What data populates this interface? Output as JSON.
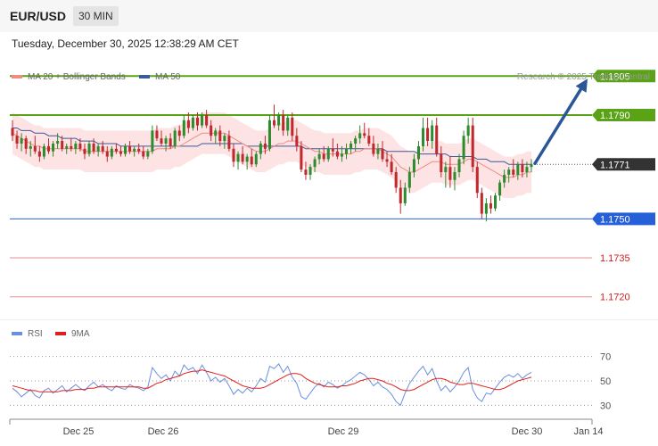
{
  "header": {
    "pair": "EUR/USD",
    "timeframe": "30 MIN"
  },
  "datetime": "Tuesday, December 30, 2025 12:38:29 AM CET",
  "legend": {
    "ma20": "MA 20 + Bollinger Bands",
    "ma50": "MA 50",
    "rsi": "RSI",
    "rsi_ma": "9MA",
    "credit": "Research © 2025 Trading Central"
  },
  "colors": {
    "up": "#2e8b2e",
    "down": "#c0282d",
    "band_fill": "#fde3e3",
    "ma20": "#f28b82",
    "ma50": "#3a5a9c",
    "resistance": "#5aa317",
    "current": "#333333",
    "support_blue": "#2660d8",
    "support_red": "#e06060",
    "arrow": "#2b5797",
    "rsi": "#6a8fe0",
    "rsi_ma": "#e0201a"
  },
  "chart_data": {
    "type": "candlestick",
    "ylim": [
      1.1712,
      1.1813
    ],
    "levels": [
      {
        "value": 1.1805,
        "label": "1.1805",
        "kind": "resistance"
      },
      {
        "value": 1.179,
        "label": "1.1790",
        "kind": "resistance"
      },
      {
        "value": 1.1771,
        "label": "1.1771",
        "kind": "current"
      },
      {
        "value": 1.175,
        "label": "1.1750",
        "kind": "support_blue"
      },
      {
        "value": 1.1735,
        "label": "1.1735",
        "kind": "support_red"
      },
      {
        "value": 1.172,
        "label": "1.1720",
        "kind": "support_red"
      }
    ],
    "arrow": {
      "from": 1.1771,
      "to": 1.1805
    },
    "x_ticks": [
      "Dec 25",
      "Dec 26",
      "Dec 29",
      "Dec 30",
      "Jan 14"
    ],
    "candles": [
      [
        1.1785,
        1.1788,
        1.178,
        1.1782
      ],
      [
        1.1782,
        1.1784,
        1.1777,
        1.1779
      ],
      [
        1.1779,
        1.1783,
        1.1776,
        1.1781
      ],
      [
        1.1781,
        1.1782,
        1.1775,
        1.1777
      ],
      [
        1.1777,
        1.178,
        1.1774,
        1.1778
      ],
      [
        1.1778,
        1.1782,
        1.1775,
        1.1776
      ],
      [
        1.1776,
        1.1778,
        1.1772,
        1.1774
      ],
      [
        1.1774,
        1.1779,
        1.1773,
        1.1778
      ],
      [
        1.1778,
        1.1781,
        1.1775,
        1.1776
      ],
      [
        1.1776,
        1.178,
        1.1774,
        1.1779
      ],
      [
        1.1779,
        1.1783,
        1.1777,
        1.178
      ],
      [
        1.178,
        1.1782,
        1.1776,
        1.1777
      ],
      [
        1.1777,
        1.1779,
        1.1775,
        1.1778
      ],
      [
        1.1778,
        1.1781,
        1.1776,
        1.1777
      ],
      [
        1.1777,
        1.178,
        1.1775,
        1.1779
      ],
      [
        1.1779,
        1.1781,
        1.1776,
        1.1777
      ],
      [
        1.1777,
        1.1779,
        1.1773,
        1.1775
      ],
      [
        1.1775,
        1.178,
        1.1774,
        1.1779
      ],
      [
        1.1779,
        1.1781,
        1.1775,
        1.1776
      ],
      [
        1.1776,
        1.1779,
        1.1774,
        1.1778
      ],
      [
        1.1778,
        1.178,
        1.1775,
        1.1776
      ],
      [
        1.1776,
        1.1778,
        1.1772,
        1.1774
      ],
      [
        1.1774,
        1.1778,
        1.1773,
        1.1777
      ],
      [
        1.1777,
        1.1779,
        1.1775,
        1.1776
      ],
      [
        1.1776,
        1.1778,
        1.1774,
        1.1775
      ],
      [
        1.1775,
        1.1779,
        1.1774,
        1.1778
      ],
      [
        1.1778,
        1.178,
        1.1775,
        1.1776
      ],
      [
        1.1776,
        1.1778,
        1.1774,
        1.1777
      ],
      [
        1.1777,
        1.1779,
        1.1775,
        1.1776
      ],
      [
        1.1776,
        1.1778,
        1.1773,
        1.1774
      ],
      [
        1.1774,
        1.1777,
        1.1773,
        1.1776
      ],
      [
        1.1776,
        1.1786,
        1.1775,
        1.1784
      ],
      [
        1.1784,
        1.1786,
        1.178,
        1.1781
      ],
      [
        1.1781,
        1.1784,
        1.1778,
        1.1779
      ],
      [
        1.1779,
        1.1782,
        1.1776,
        1.1781
      ],
      [
        1.1781,
        1.1783,
        1.1777,
        1.1778
      ],
      [
        1.1778,
        1.1785,
        1.1777,
        1.1784
      ],
      [
        1.1784,
        1.1786,
        1.178,
        1.1782
      ],
      [
        1.1782,
        1.179,
        1.1781,
        1.1788
      ],
      [
        1.1788,
        1.1791,
        1.1783,
        1.1785
      ],
      [
        1.1785,
        1.179,
        1.1784,
        1.1789
      ],
      [
        1.1789,
        1.1791,
        1.1784,
        1.1786
      ],
      [
        1.1786,
        1.1791,
        1.1785,
        1.179
      ],
      [
        1.179,
        1.1792,
        1.1785,
        1.1786
      ],
      [
        1.1786,
        1.1788,
        1.178,
        1.1782
      ],
      [
        1.1782,
        1.1785,
        1.1779,
        1.1784
      ],
      [
        1.1784,
        1.1786,
        1.1778,
        1.178
      ],
      [
        1.178,
        1.1783,
        1.1777,
        1.1782
      ],
      [
        1.1782,
        1.1784,
        1.1776,
        1.1777
      ],
      [
        1.1777,
        1.1779,
        1.177,
        1.1772
      ],
      [
        1.1772,
        1.1776,
        1.1769,
        1.1775
      ],
      [
        1.1775,
        1.1778,
        1.1771,
        1.1772
      ],
      [
        1.1772,
        1.1775,
        1.1769,
        1.1774
      ],
      [
        1.1774,
        1.1777,
        1.177,
        1.1771
      ],
      [
        1.1771,
        1.1776,
        1.177,
        1.1775
      ],
      [
        1.1775,
        1.178,
        1.1773,
        1.1779
      ],
      [
        1.1779,
        1.1782,
        1.1775,
        1.1777
      ],
      [
        1.1777,
        1.179,
        1.1776,
        1.1788
      ],
      [
        1.1788,
        1.1794,
        1.1785,
        1.1786
      ],
      [
        1.1786,
        1.1791,
        1.1784,
        1.179
      ],
      [
        1.179,
        1.1792,
        1.1782,
        1.1784
      ],
      [
        1.1784,
        1.179,
        1.1782,
        1.1789
      ],
      [
        1.1789,
        1.1791,
        1.178,
        1.1782
      ],
      [
        1.1782,
        1.1785,
        1.1776,
        1.1778
      ],
      [
        1.1778,
        1.178,
        1.1768,
        1.1769
      ],
      [
        1.1769,
        1.1772,
        1.1765,
        1.1767
      ],
      [
        1.1767,
        1.1771,
        1.1765,
        1.177
      ],
      [
        1.177,
        1.1774,
        1.1768,
        1.1773
      ],
      [
        1.1773,
        1.1777,
        1.1771,
        1.1775
      ],
      [
        1.1775,
        1.1778,
        1.1772,
        1.1773
      ],
      [
        1.1773,
        1.1778,
        1.1772,
        1.1777
      ],
      [
        1.1777,
        1.1781,
        1.1774,
        1.1776
      ],
      [
        1.1776,
        1.1779,
        1.1773,
        1.1774
      ],
      [
        1.1774,
        1.1778,
        1.1772,
        1.1775
      ],
      [
        1.1775,
        1.1779,
        1.1773,
        1.1777
      ],
      [
        1.1777,
        1.178,
        1.1775,
        1.1779
      ],
      [
        1.1779,
        1.1782,
        1.1776,
        1.1781
      ],
      [
        1.1781,
        1.1786,
        1.1779,
        1.1783
      ],
      [
        1.1783,
        1.1787,
        1.1781,
        1.1782
      ],
      [
        1.1782,
        1.1785,
        1.1778,
        1.1779
      ],
      [
        1.1779,
        1.1782,
        1.1774,
        1.1775
      ],
      [
        1.1775,
        1.1779,
        1.1773,
        1.1777
      ],
      [
        1.1777,
        1.178,
        1.1772,
        1.1773
      ],
      [
        1.1773,
        1.1776,
        1.177,
        1.1772
      ],
      [
        1.1772,
        1.1775,
        1.1767,
        1.1768
      ],
      [
        1.1768,
        1.177,
        1.176,
        1.1762
      ],
      [
        1.1762,
        1.1765,
        1.1752,
        1.1756
      ],
      [
        1.1756,
        1.1764,
        1.1755,
        1.1762
      ],
      [
        1.1762,
        1.177,
        1.176,
        1.1768
      ],
      [
        1.1768,
        1.1775,
        1.1766,
        1.1773
      ],
      [
        1.1773,
        1.178,
        1.1771,
        1.1778
      ],
      [
        1.1778,
        1.1789,
        1.1776,
        1.1785
      ],
      [
        1.1785,
        1.1789,
        1.1778,
        1.178
      ],
      [
        1.178,
        1.1788,
        1.1777,
        1.1786
      ],
      [
        1.1786,
        1.1789,
        1.1774,
        1.1775
      ],
      [
        1.1775,
        1.1778,
        1.1766,
        1.1768
      ],
      [
        1.1768,
        1.1772,
        1.1762,
        1.177
      ],
      [
        1.177,
        1.1774,
        1.1762,
        1.1765
      ],
      [
        1.1765,
        1.177,
        1.1761,
        1.1768
      ],
      [
        1.1768,
        1.1775,
        1.1766,
        1.1773
      ],
      [
        1.1773,
        1.1784,
        1.1771,
        1.1782
      ],
      [
        1.1782,
        1.1789,
        1.1779,
        1.1786
      ],
      [
        1.1786,
        1.1789,
        1.1768,
        1.177
      ],
      [
        1.177,
        1.1772,
        1.1758,
        1.176
      ],
      [
        1.176,
        1.1762,
        1.175,
        1.1752
      ],
      [
        1.1752,
        1.1758,
        1.1749,
        1.1756
      ],
      [
        1.1756,
        1.1759,
        1.1752,
        1.1754
      ],
      [
        1.1754,
        1.176,
        1.1753,
        1.1759
      ],
      [
        1.1759,
        1.1765,
        1.1757,
        1.1764
      ],
      [
        1.1764,
        1.1769,
        1.1762,
        1.1767
      ],
      [
        1.1767,
        1.177,
        1.1764,
        1.1769
      ],
      [
        1.1769,
        1.1773,
        1.1766,
        1.1767
      ],
      [
        1.1767,
        1.1772,
        1.1765,
        1.1771
      ],
      [
        1.1771,
        1.1773,
        1.1766,
        1.1768
      ],
      [
        1.1768,
        1.1772,
        1.1766,
        1.177
      ],
      [
        1.177,
        1.1773,
        1.1768,
        1.1771
      ]
    ],
    "ma20": [
      1.1783,
      1.1782,
      1.1781,
      1.178,
      1.1779,
      1.1778,
      1.1778,
      1.1777,
      1.1777,
      1.1777,
      1.1777,
      1.1777,
      1.1777,
      1.1777,
      1.1777,
      1.1777,
      1.1776,
      1.1776,
      1.1776,
      1.1776,
      1.1776,
      1.1776,
      1.1776,
      1.1776,
      1.1776,
      1.1776,
      1.1776,
      1.1776,
      1.1776,
      1.1776,
      1.1776,
      1.1776,
      1.1777,
      1.1777,
      1.1777,
      1.1777,
      1.1778,
      1.1778,
      1.1779,
      1.178,
      1.1781,
      1.1782,
      1.1783,
      1.1783,
      1.1783,
      1.1783,
      1.1783,
      1.1783,
      1.1782,
      1.1781,
      1.178,
      1.1779,
      1.1778,
      1.1777,
      1.1776,
      1.1776,
      1.1776,
      1.1777,
      1.1778,
      1.1779,
      1.1779,
      1.178,
      1.178,
      1.178,
      1.1779,
      1.1778,
      1.1777,
      1.1776,
      1.1776,
      1.1775,
      1.1775,
      1.1775,
      1.1775,
      1.1775,
      1.1775,
      1.1775,
      1.1776,
      1.1776,
      1.1777,
      1.1777,
      1.1777,
      1.1777,
      1.1776,
      1.1775,
      1.1774,
      1.1772,
      1.177,
      1.1769,
      1.1768,
      1.1768,
      1.1769,
      1.177,
      1.1771,
      1.1772,
      1.1772,
      1.1772,
      1.1771,
      1.1771,
      1.1771,
      1.1771,
      1.1772,
      1.1773,
      1.1773,
      1.1772,
      1.1771,
      1.177,
      1.1769,
      1.1768,
      1.1767,
      1.1766,
      1.1766,
      1.1766,
      1.1767,
      1.1767,
      1.1768,
      1.1768
    ],
    "ma50": [
      1.1785,
      1.1785,
      1.1784,
      1.1784,
      1.1784,
      1.1783,
      1.1783,
      1.1783,
      1.1782,
      1.1782,
      1.1782,
      1.1781,
      1.1781,
      1.1781,
      1.1781,
      1.178,
      1.178,
      1.178,
      1.178,
      1.1779,
      1.1779,
      1.1779,
      1.1779,
      1.1779,
      1.1778,
      1.1778,
      1.1778,
      1.1778,
      1.1778,
      1.1778,
      1.1778,
      1.1778,
      1.1778,
      1.1778,
      1.1778,
      1.1778,
      1.1778,
      1.1778,
      1.1778,
      1.1778,
      1.1778,
      1.1778,
      1.1779,
      1.1779,
      1.1779,
      1.1779,
      1.1779,
      1.1779,
      1.1779,
      1.1779,
      1.1779,
      1.1779,
      1.1778,
      1.1778,
      1.1778,
      1.1778,
      1.1778,
      1.1778,
      1.1778,
      1.1778,
      1.1778,
      1.1778,
      1.1778,
      1.1778,
      1.1778,
      1.1777,
      1.1777,
      1.1777,
      1.1777,
      1.1777,
      1.1777,
      1.1777,
      1.1777,
      1.1777,
      1.1777,
      1.1777,
      1.1777,
      1.1777,
      1.1777,
      1.1777,
      1.1777,
      1.1777,
      1.1777,
      1.1776,
      1.1776,
      1.1776,
      1.1776,
      1.1776,
      1.1776,
      1.1776,
      1.1775,
      1.1775,
      1.1775,
      1.1775,
      1.1775,
      1.1775,
      1.1775,
      1.1774,
      1.1774,
      1.1774,
      1.1774,
      1.1774,
      1.1774,
      1.1773,
      1.1773,
      1.1773,
      1.1772,
      1.1772,
      1.1772,
      1.1772,
      1.1771,
      1.1771,
      1.1771,
      1.1771,
      1.1771,
      1.1771
    ],
    "bb_width": 0.0008,
    "rsi": {
      "ylim": [
        20,
        80
      ],
      "levels": [
        70,
        50,
        30
      ],
      "values": [
        44,
        41,
        37,
        40,
        43,
        38,
        36,
        42,
        44,
        40,
        43,
        46,
        41,
        44,
        47,
        44,
        42,
        46,
        49,
        45,
        47,
        44,
        42,
        46,
        44,
        43,
        47,
        45,
        44,
        42,
        45,
        61,
        56,
        52,
        55,
        50,
        58,
        54,
        63,
        59,
        61,
        56,
        63,
        57,
        50,
        53,
        49,
        52,
        46,
        39,
        43,
        40,
        44,
        41,
        46,
        52,
        49,
        62,
        60,
        64,
        57,
        62,
        53,
        48,
        37,
        35,
        40,
        45,
        48,
        45,
        49,
        47,
        44,
        46,
        49,
        51,
        54,
        57,
        55,
        51,
        46,
        49,
        45,
        43,
        39,
        33,
        30,
        40,
        48,
        53,
        58,
        62,
        55,
        60,
        50,
        42,
        46,
        41,
        45,
        50,
        57,
        61,
        43,
        36,
        33,
        40,
        39,
        44,
        49,
        53,
        55,
        53,
        56,
        52,
        55,
        57
      ],
      "ma": [
        46,
        45,
        44,
        43,
        42,
        42,
        41,
        41,
        41,
        41,
        41,
        42,
        42,
        42,
        43,
        43,
        43,
        44,
        44,
        45,
        45,
        45,
        45,
        45,
        45,
        45,
        45,
        45,
        45,
        44,
        44,
        46,
        48,
        49,
        51,
        52,
        53,
        54,
        56,
        57,
        58,
        58,
        59,
        58,
        57,
        56,
        55,
        54,
        52,
        50,
        48,
        46,
        45,
        44,
        44,
        44,
        45,
        47,
        49,
        51,
        53,
        55,
        56,
        56,
        55,
        52,
        50,
        48,
        47,
        46,
        45,
        45,
        45,
        46,
        46,
        47,
        48,
        50,
        51,
        52,
        52,
        51,
        50,
        48,
        47,
        45,
        43,
        42,
        42,
        43,
        45,
        47,
        49,
        51,
        52,
        52,
        51,
        49,
        48,
        47,
        47,
        48,
        48,
        47,
        46,
        45,
        44,
        43,
        43,
        44,
        46,
        48,
        50,
        51,
        52,
        53
      ]
    }
  }
}
